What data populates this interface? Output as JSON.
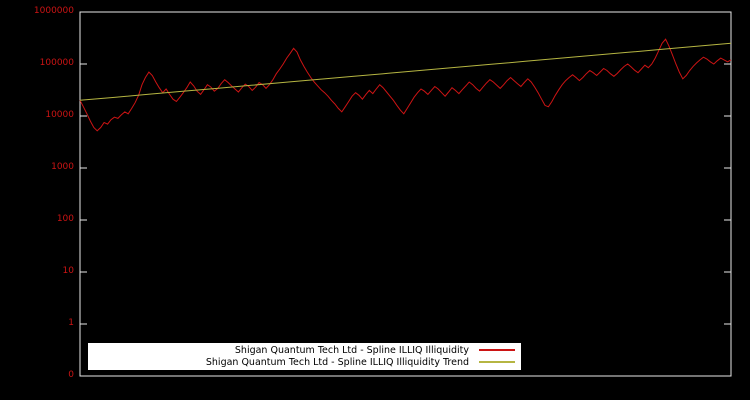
{
  "chart_data": {
    "type": "line",
    "title": "",
    "background": "#000000",
    "border_color": "#e8e8e8",
    "legend_position": "bottom-center",
    "x_axis": {
      "tick_labels_visible": false
    },
    "y_axis": {
      "scale": "log10",
      "label_color": "#cc1414",
      "tick_labels": [
        "1000000",
        "100000",
        "10000",
        "1000",
        "100",
        "10",
        "1",
        "0"
      ],
      "tick_values": [
        1000000,
        100000,
        10000,
        1000,
        100,
        10,
        1,
        0.1
      ],
      "range_log10": [
        -1,
        6
      ]
    },
    "series": [
      {
        "name": "Shigan Quantum Tech Ltd - Spline ILLIQ Illiquidity",
        "color": "#cc1414",
        "values": [
          20000,
          15000,
          11000,
          8000,
          6000,
          5200,
          6000,
          7500,
          7000,
          8500,
          9500,
          9000,
          10500,
          12000,
          11000,
          14000,
          18000,
          25000,
          40000,
          55000,
          70000,
          60000,
          45000,
          35000,
          28000,
          33000,
          26000,
          21000,
          19000,
          23000,
          28000,
          35000,
          45000,
          38000,
          30000,
          26000,
          32000,
          40000,
          36000,
          30000,
          34000,
          42000,
          50000,
          44000,
          38000,
          33000,
          29000,
          35000,
          41000,
          37000,
          31000,
          36000,
          44000,
          40000,
          34000,
          40000,
          50000,
          65000,
          80000,
          100000,
          130000,
          160000,
          200000,
          170000,
          120000,
          90000,
          70000,
          55000,
          45000,
          38000,
          32000,
          28000,
          24000,
          20000,
          17000,
          14000,
          12000,
          15000,
          19000,
          24000,
          28000,
          25000,
          21000,
          26000,
          31000,
          27000,
          33000,
          40000,
          35000,
          29000,
          24000,
          20000,
          16000,
          13000,
          11000,
          14000,
          18000,
          23000,
          28000,
          33000,
          30000,
          26000,
          31000,
          37000,
          33000,
          28000,
          24000,
          29000,
          35000,
          31000,
          27000,
          32000,
          38000,
          45000,
          40000,
          34000,
          30000,
          36000,
          43000,
          50000,
          45000,
          39000,
          34000,
          40000,
          48000,
          55000,
          48000,
          42000,
          37000,
          44000,
          52000,
          45000,
          36000,
          28000,
          21000,
          16000,
          15000,
          19000,
          25000,
          32000,
          40000,
          48000,
          55000,
          62000,
          55000,
          48000,
          55000,
          65000,
          75000,
          68000,
          60000,
          70000,
          82000,
          75000,
          65000,
          58000,
          66000,
          78000,
          90000,
          100000,
          88000,
          76000,
          68000,
          80000,
          95000,
          85000,
          100000,
          130000,
          180000,
          250000,
          300000,
          220000,
          150000,
          100000,
          70000,
          52000,
          60000,
          75000,
          90000,
          105000,
          120000,
          135000,
          125000,
          110000,
          100000,
          115000,
          130000,
          120000,
          110000,
          120000
        ]
      },
      {
        "name": "Shigan Quantum Tech Ltd - Spline ILLIQ Illiquidity Trend",
        "color": "#b5b542",
        "values": [
          20000,
          22800,
          26100,
          29800,
          34000,
          38900,
          44400,
          50700,
          57900,
          66100,
          75500,
          86300,
          98500,
          112500,
          128500,
          146800,
          167600,
          191400,
          218600,
          250000
        ]
      }
    ]
  }
}
